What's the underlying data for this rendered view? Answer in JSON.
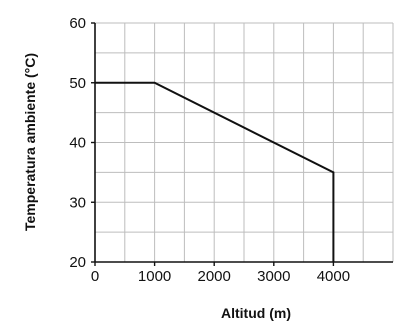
{
  "chart_data": {
    "type": "line",
    "title": "",
    "xlabel": "Altitud (m)",
    "ylabel": "Temperatura ambiente (°C)",
    "xlim": [
      0,
      5000
    ],
    "ylim": [
      20,
      60
    ],
    "x_ticks": [
      0,
      1000,
      2000,
      3000,
      4000
    ],
    "x_tick_labels": [
      "0",
      "1000",
      "2000",
      "3000",
      "4000"
    ],
    "y_ticks": [
      20,
      30,
      40,
      50,
      60
    ],
    "y_tick_labels": [
      "20",
      "30",
      "40",
      "50",
      "60"
    ],
    "x_grid": [
      0,
      500,
      1000,
      1500,
      2000,
      2500,
      3000,
      3500,
      4000,
      4500,
      5000
    ],
    "y_grid": [
      20,
      25,
      30,
      35,
      40,
      45,
      50,
      55,
      60
    ],
    "grid": true,
    "line_color": "#111111",
    "grid_color": "#bdbdbd",
    "series": [
      {
        "x": [
          0,
          1000,
          4000,
          4000
        ],
        "y": [
          50,
          50,
          35,
          20
        ]
      }
    ]
  }
}
